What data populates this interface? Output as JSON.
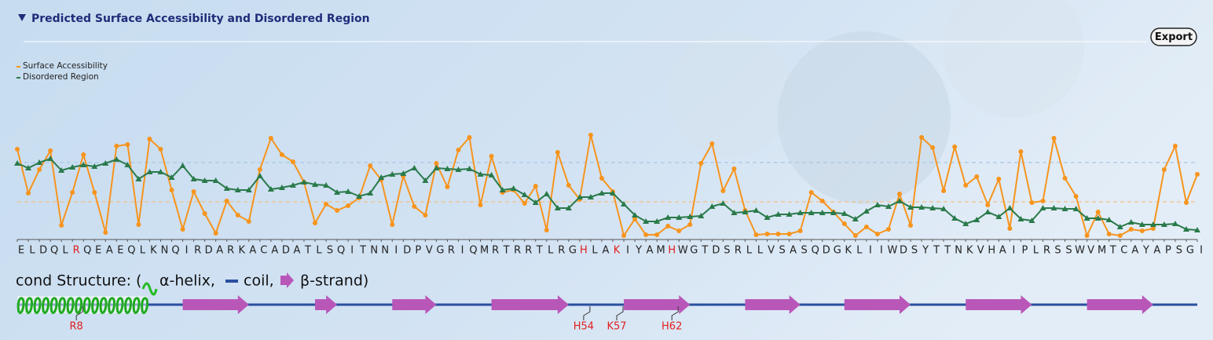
{
  "header": {
    "title": "Predicted Surface Accessibility and Disordered Region",
    "export": "Export"
  },
  "chart_data": {
    "type": "line",
    "categories": [
      "E",
      "L",
      "D",
      "Q",
      "L",
      "R",
      "Q",
      "E",
      "A",
      "E",
      "Q",
      "L",
      "K",
      "N",
      "Q",
      "I",
      "R",
      "D",
      "A",
      "R",
      "K",
      "A",
      "C",
      "A",
      "D",
      "A",
      "T",
      "L",
      "S",
      "Q",
      "I",
      "T",
      "N",
      "N",
      "I",
      "D",
      "P",
      "V",
      "G",
      "R",
      "I",
      "Q",
      "M",
      "R",
      "T",
      "R",
      "R",
      "T",
      "L",
      "R",
      "G",
      "H",
      "L",
      "A",
      "K",
      "I",
      "Y",
      "A",
      "M",
      "H",
      "W",
      "G",
      "T",
      "D",
      "S",
      "R",
      "L",
      "L",
      "V",
      "S",
      "A",
      "S",
      "Q",
      "D",
      "G",
      "K",
      "L",
      "I",
      "I",
      "W",
      "D",
      "S",
      "Y",
      "T",
      "T",
      "N",
      "K",
      "V",
      "H",
      "A",
      "I",
      "P",
      "L",
      "R",
      "S",
      "S",
      "W",
      "V",
      "M",
      "T",
      "C",
      "A",
      "Y",
      "A",
      "P",
      "S",
      "G",
      "I"
    ],
    "series": [
      {
        "name": "Surface Accessibility",
        "color": "#f7941d",
        "marker": "circle",
        "values": [
          115,
          59,
          89,
          113,
          18,
          60,
          108,
          60,
          9,
          119,
          121,
          19,
          128,
          115,
          63,
          13,
          61,
          33,
          8,
          49,
          31,
          23,
          89,
          129,
          108,
          99,
          73,
          21,
          45,
          37,
          43,
          53,
          94,
          76,
          19,
          81,
          42,
          31,
          97,
          67,
          114,
          130,
          44,
          106,
          60,
          63,
          46,
          68,
          12,
          111,
          69,
          51,
          133,
          78,
          61,
          5,
          26,
          6,
          6,
          17,
          11,
          19,
          97,
          122,
          62,
          90,
          37,
          6,
          7,
          7,
          7,
          11,
          60,
          49,
          35,
          20,
          5,
          16,
          7,
          13,
          58,
          18,
          130,
          117,
          62,
          118,
          69,
          80,
          44,
          77,
          14,
          112,
          47,
          49,
          129,
          78,
          55,
          5,
          35,
          7,
          5,
          13,
          11,
          14,
          89,
          119,
          47,
          83
        ]
      },
      {
        "name": "Disordered Region",
        "color": "#2a7a4a",
        "marker": "triangle",
        "values": [
          97,
          91,
          98,
          103,
          88,
          92,
          95,
          93,
          97,
          102,
          95,
          77,
          86,
          86,
          79,
          94,
          77,
          75,
          75,
          65,
          63,
          63,
          81,
          64,
          66,
          69,
          73,
          70,
          69,
          60,
          61,
          55,
          59,
          79,
          83,
          84,
          91,
          75,
          91,
          90,
          89,
          90,
          83,
          82,
          63,
          65,
          57,
          47,
          58,
          40,
          40,
          54,
          54,
          59,
          59,
          45,
          31,
          23,
          23,
          28,
          28,
          29,
          30,
          42,
          46,
          34,
          35,
          37,
          28,
          32,
          32,
          34,
          34,
          34,
          34,
          33,
          26,
          36,
          44,
          42,
          49,
          41,
          41,
          40,
          39,
          27,
          20,
          25,
          35,
          29,
          40,
          26,
          24,
          40,
          40,
          39,
          39,
          27,
          27,
          25,
          16,
          22,
          19,
          19,
          19,
          20,
          13,
          12
        ]
      }
    ],
    "ylim": [
      0,
      140
    ],
    "thresholds": [
      {
        "value": 98,
        "color": "#a7c6e6"
      },
      {
        "value": 48,
        "color": "#f4bf86"
      }
    ],
    "legend": "top-left"
  },
  "structure": {
    "label": "cond Structure: (",
    "legend": [
      {
        "type": "helix",
        "label": "α-helix,"
      },
      {
        "type": "coil",
        "label": "coil,"
      },
      {
        "type": "strand",
        "label": "β-strand)"
      }
    ],
    "segments": [
      {
        "type": "helix",
        "start": 0,
        "end": 11.8
      },
      {
        "type": "strand",
        "start": 15,
        "end": 21
      },
      {
        "type": "strand",
        "start": 27,
        "end": 29
      },
      {
        "type": "strand",
        "start": 34,
        "end": 38
      },
      {
        "type": "strand",
        "start": 43,
        "end": 50
      },
      {
        "type": "strand",
        "start": 55,
        "end": 61
      },
      {
        "type": "strand",
        "start": 66,
        "end": 71
      },
      {
        "type": "strand",
        "start": 75,
        "end": 81
      },
      {
        "type": "strand",
        "start": 86,
        "end": 92
      },
      {
        "type": "strand",
        "start": 97,
        "end": 103
      }
    ],
    "annotations": [
      {
        "label": "R8",
        "index": 5
      },
      {
        "label": "H54",
        "index": 51
      },
      {
        "label": "K57",
        "index": 54
      },
      {
        "label": "H62",
        "index": 59
      }
    ]
  }
}
